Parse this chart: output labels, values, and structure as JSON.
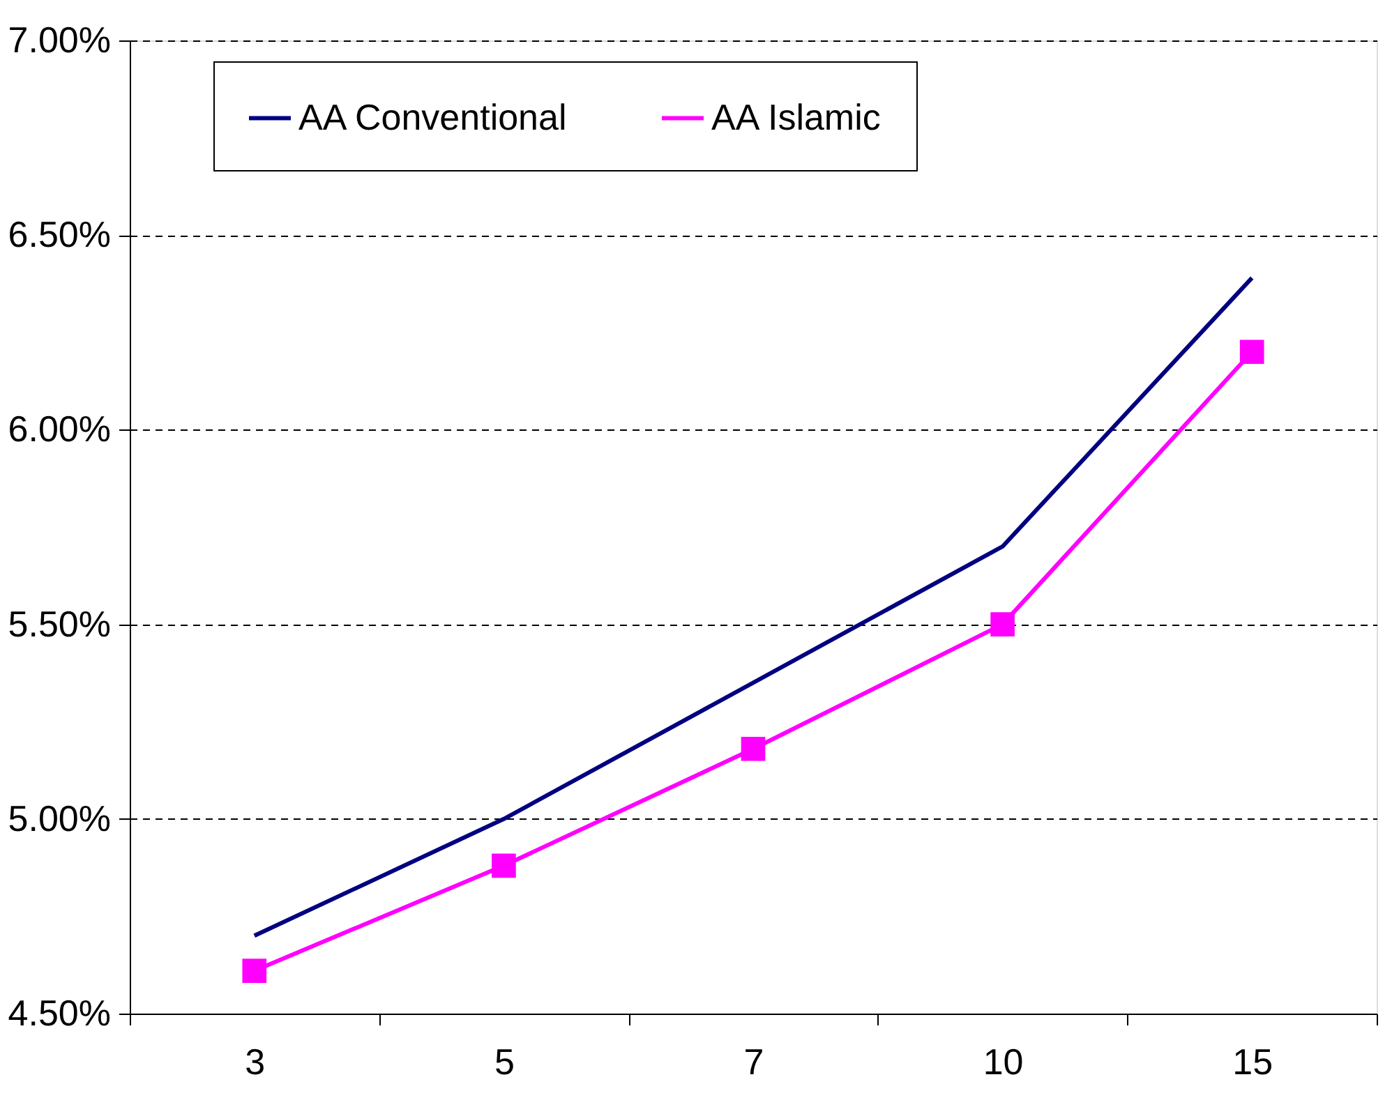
{
  "chart_data": {
    "type": "line",
    "categories": [
      "3",
      "5",
      "7",
      "10",
      "15"
    ],
    "series": [
      {
        "name": "AA Conventional",
        "color": "#000080",
        "marker": "none",
        "values": [
          4.7,
          5.0,
          5.35,
          5.7,
          6.39
        ]
      },
      {
        "name": "AA Islamic",
        "color": "#ff00ff",
        "marker": "square",
        "values": [
          4.61,
          4.88,
          5.18,
          5.5,
          6.2
        ]
      }
    ],
    "ylim": [
      4.5,
      7.0
    ],
    "yticks": [
      {
        "value": 4.5,
        "label": "4.50%"
      },
      {
        "value": 5.0,
        "label": "5.00%"
      },
      {
        "value": 5.5,
        "label": "5.50%"
      },
      {
        "value": 6.0,
        "label": "6.00%"
      },
      {
        "value": 6.5,
        "label": "6.50%"
      },
      {
        "value": 7.0,
        "label": "7.00%"
      }
    ],
    "grid": "y",
    "legend": "top",
    "line_style": "solid"
  }
}
